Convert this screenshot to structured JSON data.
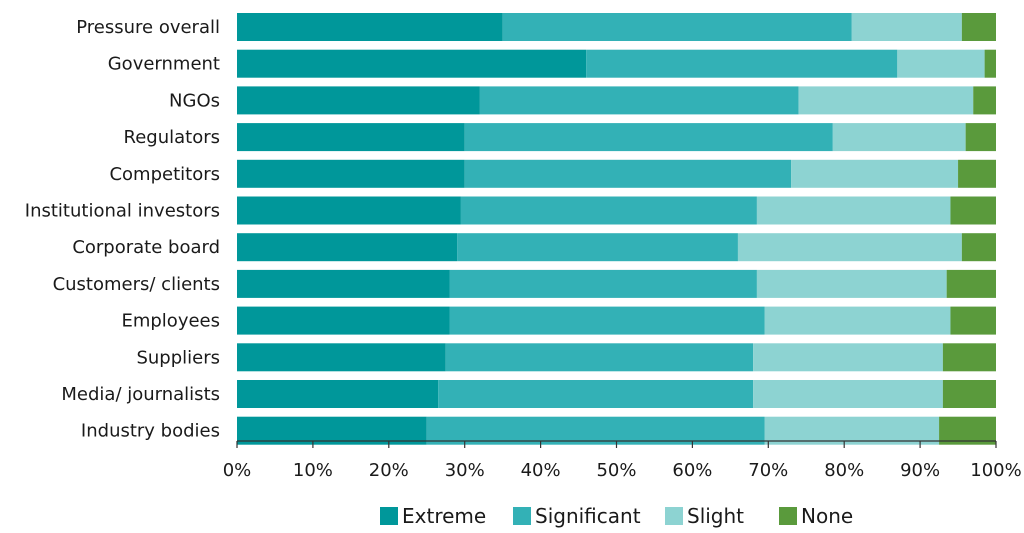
{
  "chart_data": {
    "type": "bar",
    "orientation": "horizontal",
    "stacked": true,
    "categories": [
      "Pressure overall",
      "Government",
      "NGOs",
      "Regulators",
      "Competitors",
      "Institutional investors",
      "Corporate board",
      "Customers/ clients",
      "Employees",
      "Suppliers",
      "Media/ journalists",
      "Industry bodies"
    ],
    "series": [
      {
        "name": "Extreme",
        "color": "#00979a",
        "values": [
          35,
          46,
          32,
          30,
          30,
          29.5,
          29,
          28,
          28,
          27.5,
          26.5,
          25
        ]
      },
      {
        "name": "Significant",
        "color": "#33b1b6",
        "values": [
          46,
          41,
          42,
          48.5,
          43,
          39,
          37,
          40.5,
          41.5,
          40.5,
          41.5,
          44.5
        ]
      },
      {
        "name": "Slight",
        "color": "#8dd3d2",
        "values": [
          14.5,
          11.5,
          23,
          17.5,
          22,
          25.5,
          29.5,
          25,
          24.5,
          25,
          25,
          23
        ]
      },
      {
        "name": "None",
        "color": "#5a9a3c",
        "values": [
          4.5,
          1.5,
          3,
          4,
          5,
          6,
          4.5,
          6.5,
          6,
          7,
          7,
          7.5
        ]
      }
    ],
    "xlim": [
      0,
      100
    ],
    "xticks": [
      "0%",
      "10%",
      "20%",
      "30%",
      "40%",
      "50%",
      "60%",
      "70%",
      "80%",
      "90%",
      "100%"
    ],
    "legend": "bottom",
    "grid": false
  }
}
